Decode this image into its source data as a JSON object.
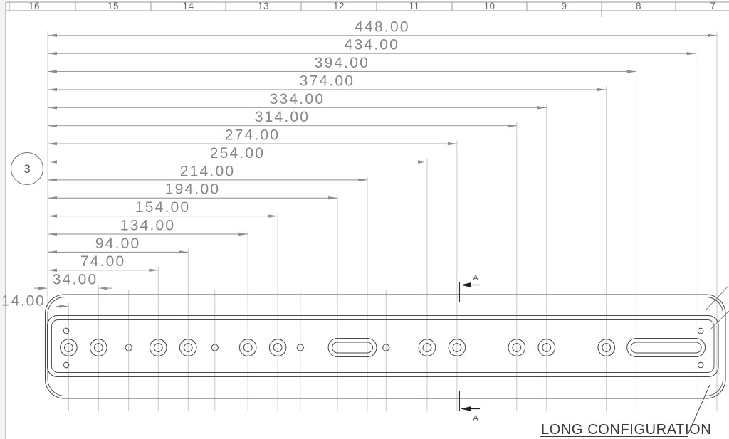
{
  "sheet": {
    "zone_ruler": {
      "labels": [
        "16",
        "15",
        "14",
        "13",
        "12",
        "11",
        "10",
        "9",
        "8",
        "7"
      ]
    },
    "view_balloon": {
      "label": "3"
    },
    "section_marks": {
      "label": "A"
    },
    "callout": {
      "label": "LONG CONFIGURATION"
    }
  },
  "dimensions": {
    "items": [
      {
        "label": "448.00",
        "mm": 448
      },
      {
        "label": "434.00",
        "mm": 434
      },
      {
        "label": "394.00",
        "mm": 394
      },
      {
        "label": "374.00",
        "mm": 374
      },
      {
        "label": "334.00",
        "mm": 334
      },
      {
        "label": "314.00",
        "mm": 314
      },
      {
        "label": "274.00",
        "mm": 274
      },
      {
        "label": "254.00",
        "mm": 254
      },
      {
        "label": "214.00",
        "mm": 214
      },
      {
        "label": "194.00",
        "mm": 194
      },
      {
        "label": "154.00",
        "mm": 154
      },
      {
        "label": "134.00",
        "mm": 134
      },
      {
        "label": "94.00",
        "mm": 94
      },
      {
        "label": "74.00",
        "mm": 74
      },
      {
        "label": "34.00",
        "mm": 34
      },
      {
        "label": "14.00",
        "mm": 14
      }
    ]
  },
  "part": {
    "overall_length_mm": 448,
    "counterbore_holes_mm": [
      14,
      34,
      74,
      94,
      134,
      154,
      254,
      274,
      314,
      334,
      374
    ],
    "small_holes_mm": [
      54.2,
      111.9,
      169.1,
      226.5
    ],
    "slots_mm": [
      [
        194,
        214
      ],
      [
        394,
        434
      ]
    ],
    "corner_pin_holes_mm": [
      12.4,
      437.1
    ]
  },
  "colors": {
    "part_line": "#4a4a4a",
    "dim_line": "#8e8e8e",
    "dim_text": "#868686",
    "ext_line": "#c4c4c4",
    "border_line": "#979797",
    "zone_text": "#666666",
    "section_arrow": "#1e1e1e",
    "section_text": "#555555",
    "callout_text": "#3a3a3a",
    "margin_fill": "#f3f3f5"
  }
}
